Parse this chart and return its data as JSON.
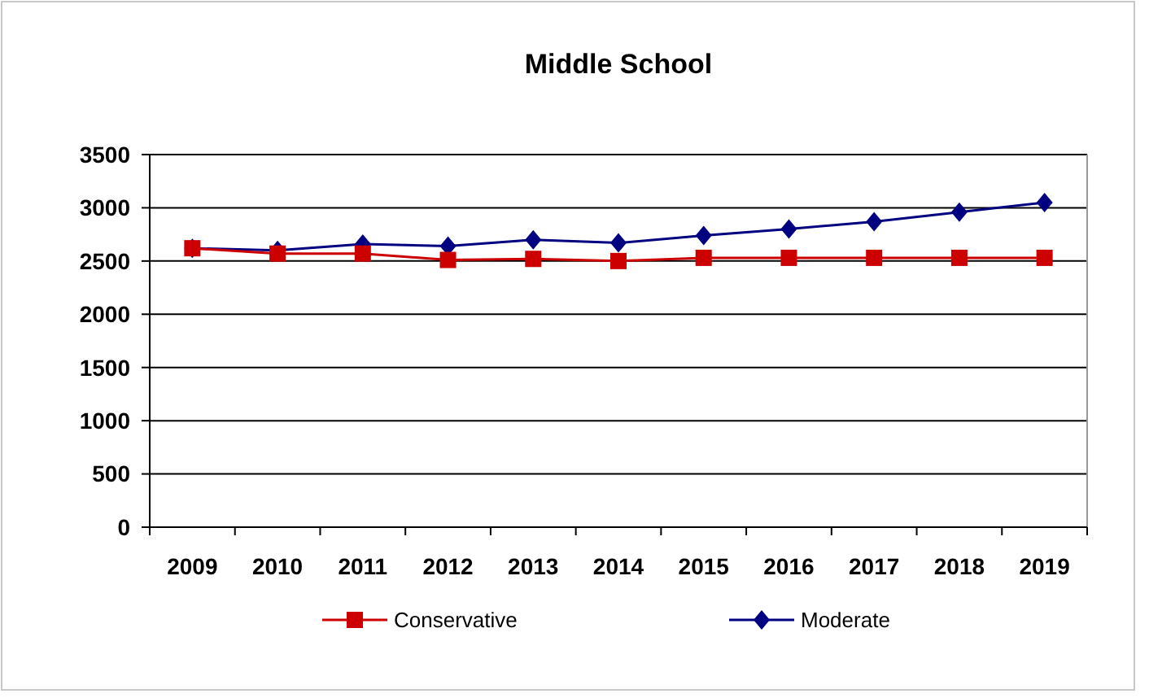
{
  "chart_data": {
    "type": "line",
    "title": "Middle School",
    "categories": [
      "2009",
      "2010",
      "2011",
      "2012",
      "2013",
      "2014",
      "2015",
      "2016",
      "2017",
      "2018",
      "2019"
    ],
    "series": [
      {
        "name": "Conservative",
        "color": "#cc0000",
        "marker": "square",
        "values": [
          2620,
          2570,
          2570,
          2510,
          2520,
          2500,
          2530,
          2530,
          2530,
          2530,
          2530
        ]
      },
      {
        "name": "Moderate",
        "color": "#000080",
        "marker": "diamond",
        "values": [
          2620,
          2600,
          2660,
          2640,
          2700,
          2670,
          2740,
          2800,
          2870,
          2960,
          3050
        ]
      }
    ],
    "ylim": [
      0,
      3500
    ],
    "yticks": [
      0,
      500,
      1000,
      1500,
      2000,
      2500,
      3000,
      3500
    ],
    "grid": "y",
    "legend": "bottom"
  }
}
